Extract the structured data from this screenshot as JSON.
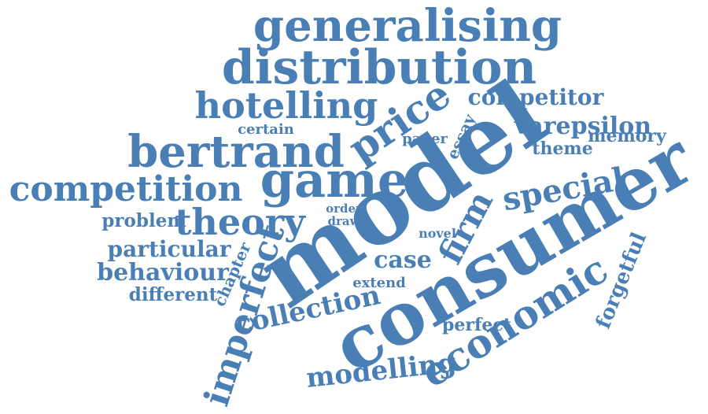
{
  "cloud": {
    "color": "#4a7fb5",
    "words": [
      "generalising",
      "distribution",
      "hotelling",
      "competitor",
      "price",
      "certain",
      "paper",
      "essay",
      "varepsilon",
      "memory",
      "theme",
      "bertrand",
      "model",
      "game",
      "consumer",
      "competition",
      "special",
      "order",
      "draw",
      "problem",
      "theory",
      "novel",
      "firm",
      "particular",
      "case",
      "behaviour",
      "chapter",
      "extend",
      "different",
      "imperfect",
      "forgetful",
      "collection",
      "economic",
      "perfect",
      "modelling"
    ]
  }
}
